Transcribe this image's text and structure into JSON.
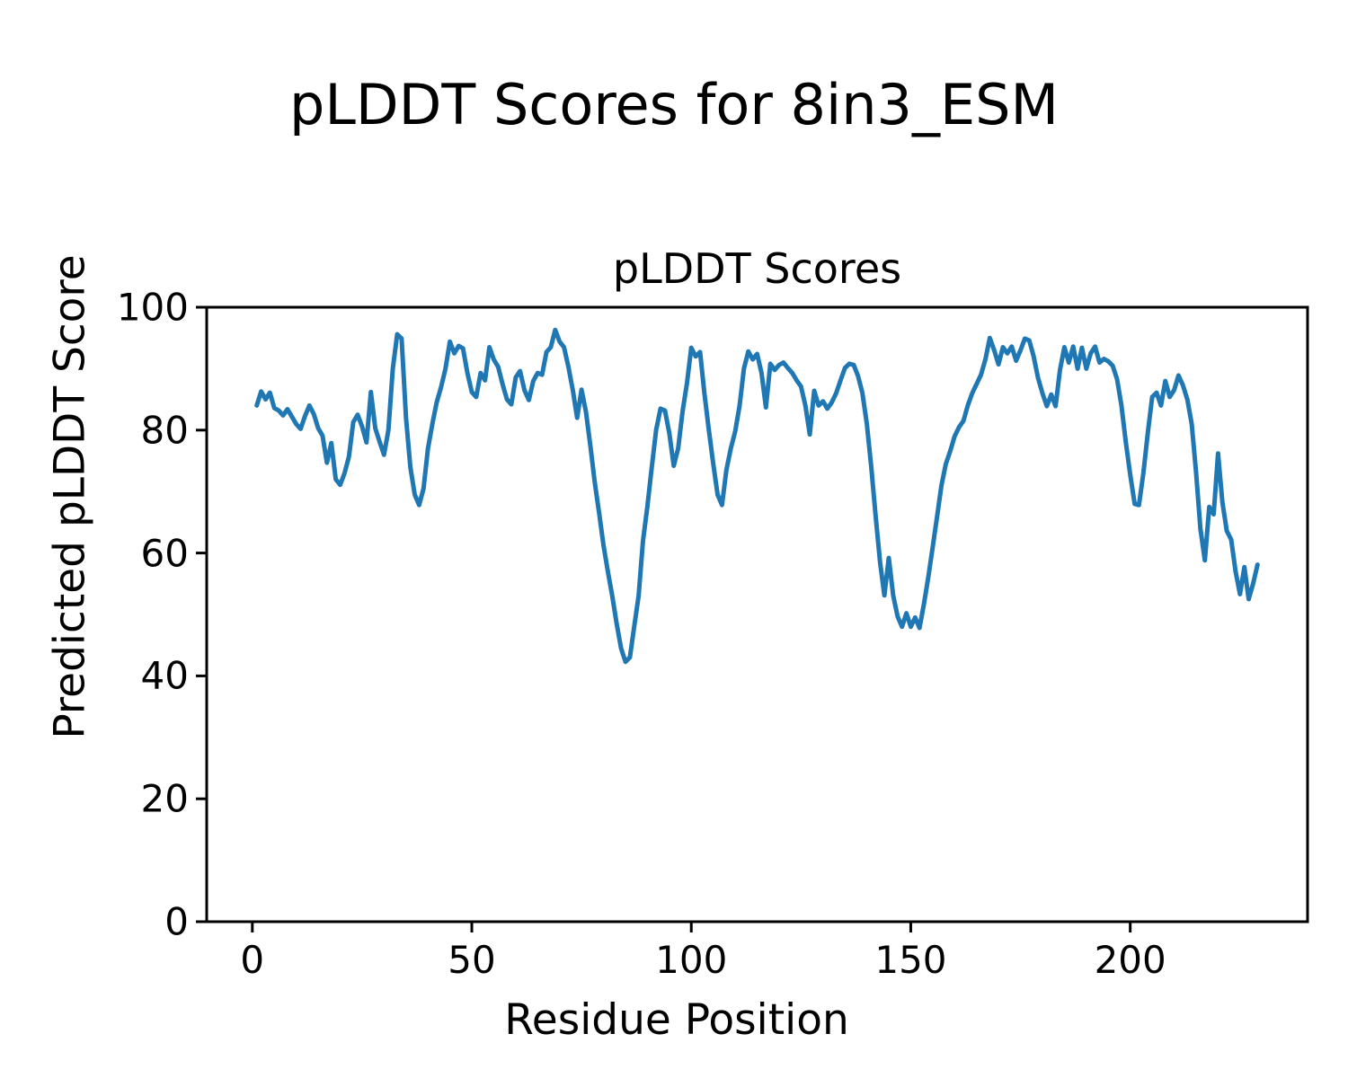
{
  "figure": {
    "suptitle": "pLDDT Scores for 8in3_ESM",
    "background_color": "#ffffff",
    "spine_color": "#000000",
    "text_color": "#000000"
  },
  "chart_data": {
    "type": "line",
    "title": "pLDDT Scores",
    "xlabel": "Residue Position",
    "ylabel": "Predicted pLDDT Score",
    "legend": null,
    "grid": false,
    "line_color": "#1f77b4",
    "xlim": [
      -10.4,
      240.4
    ],
    "ylim": [
      0,
      100
    ],
    "xticks": [
      0,
      50,
      100,
      150,
      200
    ],
    "yticks": [
      0,
      20,
      40,
      60,
      80,
      100
    ],
    "x_start": 1,
    "x_step": 1,
    "n_points": 229,
    "values": [
      84.0,
      86.3,
      85.0,
      86.1,
      83.6,
      83.2,
      82.4,
      83.4,
      82.2,
      81.0,
      80.2,
      82.3,
      84.0,
      82.6,
      80.3,
      79.1,
      74.7,
      77.9,
      72.0,
      71.1,
      73.0,
      75.7,
      81.3,
      82.5,
      80.6,
      78.0,
      86.2,
      80.3,
      78.1,
      76.0,
      80.0,
      90.0,
      95.6,
      94.9,
      82.0,
      74.0,
      69.5,
      67.8,
      70.5,
      77.0,
      81.0,
      84.5,
      87.0,
      90.0,
      94.4,
      92.5,
      93.7,
      93.3,
      89.3,
      86.2,
      85.4,
      89.3,
      88.1,
      93.5,
      91.5,
      90.3,
      87.5,
      85.0,
      84.2,
      88.6,
      89.6,
      86.5,
      84.9,
      88.0,
      89.3,
      89.0,
      92.7,
      93.5,
      96.3,
      94.4,
      93.5,
      90.3,
      86.5,
      82.0,
      86.6,
      83.0,
      77.5,
      71.5,
      66.5,
      61.3,
      57.0,
      53.0,
      48.5,
      44.5,
      42.3,
      43.0,
      48.0,
      53.0,
      62.0,
      67.6,
      74.0,
      80.1,
      83.5,
      83.2,
      79.5,
      74.2,
      77.0,
      83.0,
      87.6,
      93.4,
      92.0,
      92.7,
      85.9,
      80.0,
      74.5,
      69.5,
      67.8,
      73.5,
      77.0,
      79.8,
      84.0,
      90.0,
      92.8,
      91.5,
      92.4,
      89.3,
      83.7,
      90.8,
      89.8,
      90.6,
      91.0,
      90.1,
      89.3,
      88.1,
      87.1,
      84.0,
      79.3,
      86.4,
      84.0,
      84.7,
      83.5,
      84.5,
      86.0,
      88.1,
      90.1,
      90.8,
      90.6,
      88.8,
      86.0,
      81.0,
      74.0,
      66.0,
      58.5,
      53.1,
      59.2,
      53.1,
      49.7,
      48.0,
      50.2,
      48.0,
      49.5,
      47.8,
      51.7,
      56.1,
      61.0,
      66.0,
      71.0,
      74.5,
      76.6,
      79.0,
      80.5,
      81.5,
      84.0,
      86.0,
      87.5,
      89.0,
      91.5,
      95.0,
      93.0,
      90.7,
      93.5,
      92.5,
      93.6,
      91.3,
      93.0,
      94.9,
      94.6,
      92.0,
      88.5,
      86.0,
      83.9,
      85.8,
      83.9,
      89.8,
      93.5,
      91.0,
      93.6,
      90.0,
      93.4,
      90.0,
      92.5,
      93.6,
      91.0,
      91.6,
      91.2,
      90.5,
      88.3,
      84.0,
      78.0,
      72.7,
      68.0,
      67.8,
      73.0,
      79.5,
      85.4,
      86.1,
      84.0,
      88.0,
      85.4,
      86.5,
      88.9,
      87.3,
      85.0,
      81.0,
      73.2,
      63.9,
      58.8,
      67.5,
      66.3,
      76.2,
      68.3,
      63.6,
      62.2,
      57.0,
      53.3,
      57.7,
      52.5,
      55.0,
      58.1
    ]
  }
}
